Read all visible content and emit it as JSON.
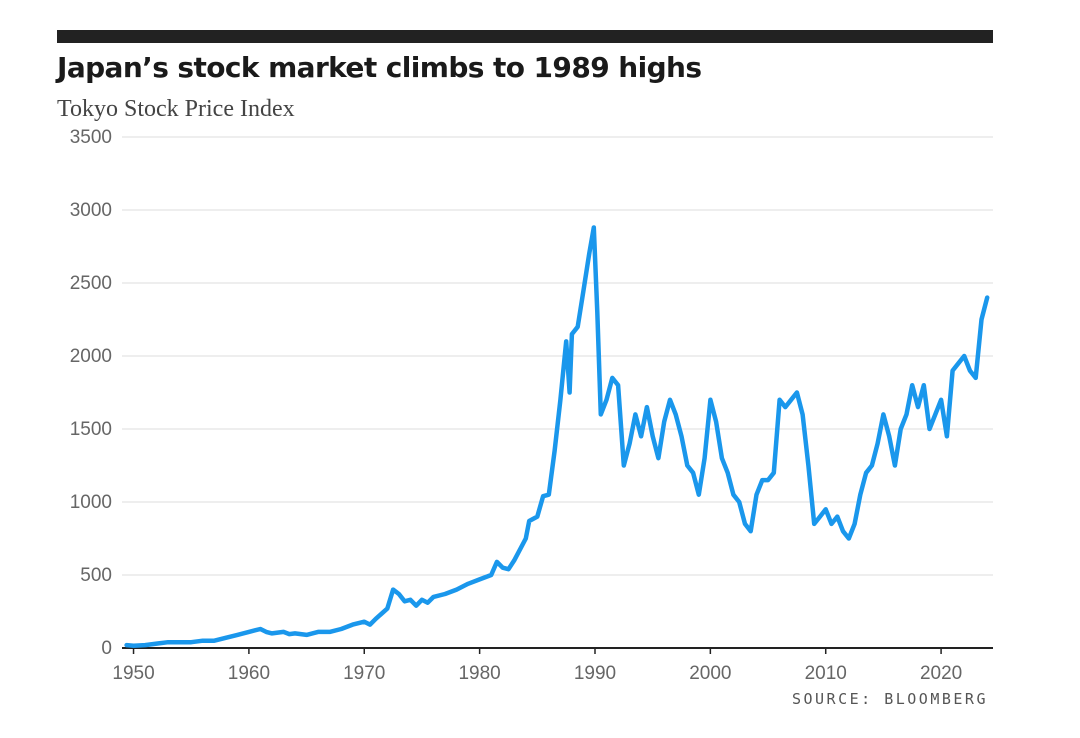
{
  "header": {
    "title": "Japan’s stock market climbs to 1989 highs",
    "subtitle": "Tokyo Stock Price Index"
  },
  "footer": {
    "source": "SOURCE: BLOOMBERG"
  },
  "colors": {
    "line": "#1a97ec",
    "grid": "#dddddd",
    "axis": "#222222",
    "tick_label": "#666666",
    "title_bar": "#222222"
  },
  "chart_data": {
    "type": "line",
    "title": "Japan’s stock market climbs to 1989 highs",
    "subtitle": "Tokyo Stock Price Index",
    "xlabel": "",
    "ylabel": "",
    "xlim": [
      1949,
      2024.5
    ],
    "ylim": [
      0,
      3500
    ],
    "x_ticks": [
      1950,
      1960,
      1970,
      1980,
      1990,
      2000,
      2010,
      2020
    ],
    "x_tick_labels": [
      "1950",
      "1960",
      "1970",
      "1980",
      "1990",
      "2000",
      "2010",
      "2020"
    ],
    "y_ticks": [
      0,
      500,
      1000,
      1500,
      2000,
      2500,
      3000,
      3500
    ],
    "y_tick_labels": [
      "0",
      "500",
      "1000",
      "1500",
      "2000",
      "2500",
      "3000",
      "3500"
    ],
    "grid": true,
    "legend": "none",
    "series": [
      {
        "x": [
          1949.4,
          1950,
          1951,
          1952,
          1953,
          1954,
          1955,
          1956,
          1957,
          1958,
          1959,
          1960,
          1961,
          1961.5,
          1962,
          1963,
          1963.5,
          1964,
          1965,
          1966,
          1967,
          1968,
          1969,
          1970,
          1970.5,
          1971,
          1972,
          1972.5,
          1973,
          1973.5,
          1974,
          1974.5,
          1975,
          1975.5,
          1976,
          1977,
          1978,
          1979,
          1980,
          1981,
          1981.5,
          1982,
          1982.5,
          1983,
          1984,
          1984.3,
          1985,
          1985.5,
          1986,
          1986.5,
          1987,
          1987.5,
          1987.8,
          1988,
          1988.5,
          1989,
          1989.5,
          1989.9,
          1990.2,
          1990.5,
          1991,
          1991.5,
          1992,
          1992.5,
          1993,
          1993.5,
          1994,
          1994.5,
          1995,
          1995.5,
          1996,
          1996.5,
          1997,
          1997.5,
          1998,
          1998.5,
          1999,
          1999.5,
          2000,
          2000.5,
          2001,
          2001.5,
          2002,
          2002.5,
          2003,
          2003.5,
          2004,
          2004.5,
          2005,
          2005.5,
          2006,
          2006.5,
          2007,
          2007.5,
          2008,
          2008.5,
          2009,
          2009.5,
          2010,
          2010.5,
          2011,
          2011.5,
          2012,
          2012.5,
          2013,
          2013.5,
          2014,
          2014.5,
          2015,
          2015.5,
          2016,
          2016.5,
          2017,
          2017.5,
          2018,
          2018.5,
          2019,
          2019.5,
          2020,
          2020.5,
          2021,
          2021.5,
          2022,
          2022.5,
          2023,
          2023.5,
          2024
        ],
        "values": [
          20,
          15,
          20,
          30,
          40,
          40,
          40,
          50,
          50,
          70,
          90,
          110,
          130,
          110,
          100,
          110,
          95,
          100,
          90,
          110,
          110,
          130,
          160,
          180,
          160,
          200,
          270,
          400,
          370,
          320,
          330,
          290,
          330,
          310,
          350,
          370,
          400,
          440,
          470,
          500,
          590,
          550,
          540,
          600,
          750,
          870,
          900,
          1040,
          1050,
          1350,
          1700,
          2100,
          1750,
          2150,
          2200,
          2450,
          2700,
          2880,
          2300,
          1600,
          1700,
          1850,
          1800,
          1250,
          1400,
          1600,
          1450,
          1650,
          1450,
          1300,
          1550,
          1700,
          1600,
          1450,
          1250,
          1200,
          1050,
          1300,
          1700,
          1550,
          1300,
          1200,
          1050,
          1000,
          850,
          800,
          1050,
          1150,
          1150,
          1200,
          1700,
          1650,
          1700,
          1750,
          1600,
          1250,
          850,
          900,
          950,
          850,
          900,
          800,
          750,
          850,
          1050,
          1200,
          1250,
          1400,
          1600,
          1450,
          1250,
          1500,
          1600,
          1800,
          1650,
          1800,
          1500,
          1600,
          1700,
          1450,
          1900,
          1950,
          2000,
          1900,
          1850,
          2250,
          2400
        ]
      }
    ]
  }
}
